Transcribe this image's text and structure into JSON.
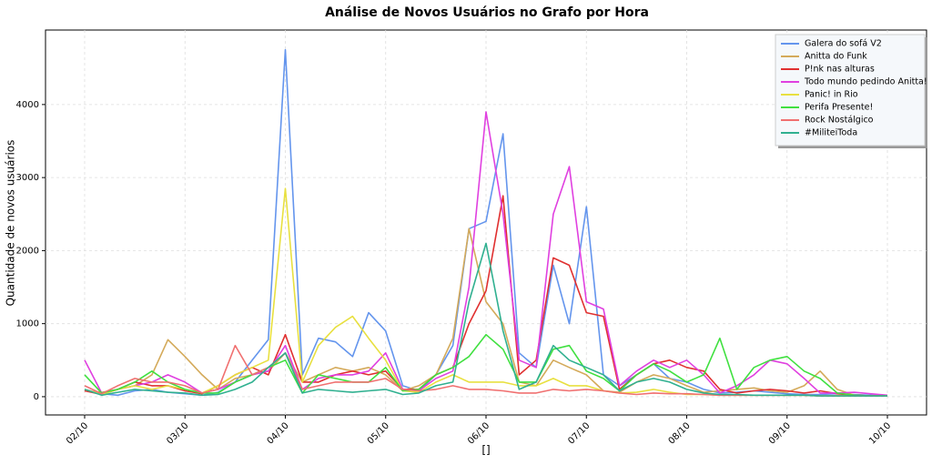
{
  "chart_data": {
    "type": "line",
    "title": "Análise de Novos Usuários no Grafo por Hora",
    "xlabel": "[]",
    "ylabel": "Quantidade de novos usuários",
    "x": [
      0,
      0.17,
      0.33,
      0.5,
      0.67,
      0.83,
      1,
      1.17,
      1.33,
      1.5,
      1.67,
      1.83,
      2,
      2.17,
      2.33,
      2.5,
      2.67,
      2.83,
      3,
      3.17,
      3.33,
      3.5,
      3.67,
      3.83,
      4,
      4.17,
      4.33,
      4.5,
      4.67,
      4.83,
      5,
      5.17,
      5.33,
      5.5,
      5.67,
      5.83,
      6,
      6.17,
      6.33,
      6.5,
      6.67,
      6.83,
      7,
      7.17,
      7.33,
      7.5,
      7.67,
      7.83,
      8
    ],
    "series": [
      {
        "name": "Galera do sofá V2",
        "color": "#6495ed",
        "values": [
          100,
          40,
          20,
          80,
          100,
          60,
          40,
          20,
          60,
          200,
          500,
          780,
          4750,
          300,
          800,
          750,
          550,
          1150,
          900,
          150,
          80,
          300,
          700,
          2300,
          2400,
          3600,
          600,
          400,
          1800,
          1000,
          2600,
          300,
          150,
          300,
          450,
          250,
          200,
          100,
          50,
          60,
          80,
          60,
          40,
          30,
          30,
          40,
          30,
          20,
          10
        ]
      },
      {
        "name": "Anitta do Funk",
        "color": "#d4aa5a",
        "values": [
          80,
          60,
          100,
          150,
          300,
          780,
          550,
          300,
          100,
          250,
          300,
          350,
          600,
          200,
          300,
          400,
          350,
          400,
          300,
          80,
          150,
          300,
          800,
          2300,
          1300,
          1000,
          200,
          150,
          500,
          400,
          300,
          80,
          60,
          200,
          300,
          250,
          150,
          60,
          80,
          100,
          120,
          80,
          60,
          150,
          350,
          100,
          20,
          10,
          10
        ]
      },
      {
        "name": "P!nk nas alturas",
        "color": "#e03030",
        "values": [
          80,
          30,
          100,
          200,
          150,
          150,
          80,
          40,
          150,
          300,
          400,
          300,
          850,
          200,
          200,
          300,
          350,
          300,
          350,
          100,
          100,
          300,
          400,
          1000,
          1450,
          2750,
          300,
          500,
          1900,
          1800,
          1150,
          1100,
          100,
          300,
          450,
          500,
          400,
          350,
          100,
          50,
          80,
          100,
          80,
          50,
          80,
          40,
          20,
          10,
          10
        ]
      },
      {
        "name": "Todo mundo pedindo Anitta!",
        "color": "#e040e0",
        "values": [
          500,
          50,
          100,
          150,
          200,
          300,
          200,
          50,
          100,
          200,
          300,
          350,
          700,
          100,
          250,
          300,
          300,
          350,
          600,
          100,
          80,
          250,
          350,
          1500,
          3900,
          2500,
          500,
          400,
          2500,
          3150,
          1300,
          1200,
          150,
          350,
          500,
          400,
          500,
          300,
          50,
          150,
          300,
          500,
          450,
          250,
          50,
          50,
          60,
          40,
          20
        ]
      },
      {
        "name": "Panic! in Rio",
        "color": "#e8e040",
        "values": [
          100,
          30,
          100,
          150,
          100,
          150,
          100,
          50,
          150,
          300,
          400,
          500,
          2850,
          200,
          700,
          950,
          1100,
          800,
          500,
          80,
          60,
          200,
          300,
          200,
          200,
          200,
          150,
          150,
          250,
          150,
          150,
          80,
          50,
          60,
          100,
          60,
          30,
          30,
          20,
          20,
          20,
          20,
          20,
          20,
          10,
          10,
          10,
          10,
          10
        ]
      },
      {
        "name": "Perifa Presente!",
        "color": "#40e040",
        "values": [
          300,
          50,
          100,
          200,
          350,
          200,
          100,
          50,
          50,
          200,
          300,
          400,
          500,
          50,
          300,
          250,
          200,
          200,
          400,
          80,
          100,
          300,
          400,
          550,
          850,
          650,
          200,
          200,
          650,
          700,
          350,
          250,
          80,
          300,
          450,
          350,
          200,
          300,
          800,
          100,
          400,
          500,
          550,
          350,
          250,
          50,
          20,
          10,
          10
        ]
      },
      {
        "name": "Rock Nostálgico",
        "color": "#f07070",
        "values": [
          150,
          40,
          150,
          250,
          200,
          200,
          150,
          50,
          100,
          700,
          300,
          400,
          600,
          100,
          150,
          200,
          200,
          200,
          250,
          100,
          80,
          100,
          150,
          100,
          100,
          80,
          50,
          50,
          100,
          80,
          100,
          80,
          50,
          30,
          50,
          40,
          40,
          30,
          20,
          20,
          20,
          20,
          20,
          20,
          10,
          10,
          10,
          10,
          10
        ]
      },
      {
        "name": "#MilitеiToda",
        "color": "#30b090",
        "values": [
          100,
          20,
          60,
          100,
          80,
          60,
          50,
          20,
          30,
          100,
          200,
          400,
          600,
          50,
          100,
          80,
          60,
          80,
          100,
          30,
          50,
          150,
          200,
          1300,
          2100,
          900,
          100,
          200,
          700,
          500,
          400,
          300,
          80,
          200,
          250,
          200,
          100,
          50,
          30,
          30,
          20,
          20,
          20,
          20,
          10,
          10,
          10,
          10,
          10
        ]
      }
    ],
    "xlim": [
      -0.39,
      8.39
    ],
    "ylim": [
      -250,
      5020
    ],
    "xticks": [
      {
        "value": 0,
        "label": "02/10"
      },
      {
        "value": 1,
        "label": "03/10"
      },
      {
        "value": 2,
        "label": "04/10"
      },
      {
        "value": 3,
        "label": "05/10"
      },
      {
        "value": 4,
        "label": "06/10"
      },
      {
        "value": 5,
        "label": "07/10"
      },
      {
        "value": 6,
        "label": "08/10"
      },
      {
        "value": 7,
        "label": "09/10"
      },
      {
        "value": 8,
        "label": "10/10"
      }
    ],
    "yticks": [
      0,
      1000,
      2000,
      3000,
      4000
    ],
    "grid": true,
    "legend": "upper right"
  }
}
